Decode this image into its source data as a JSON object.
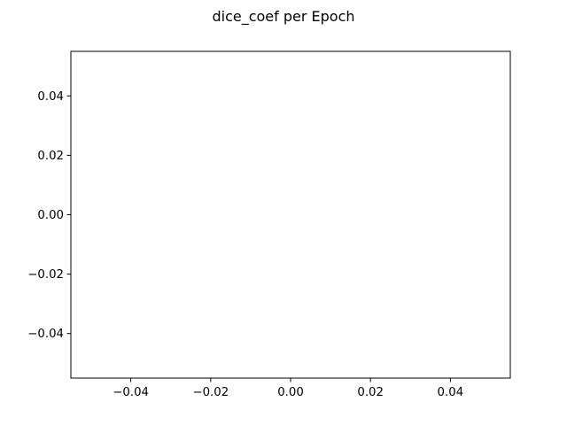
{
  "chart_data": {
    "type": "line",
    "title": "dice_coef per Epoch",
    "xlabel": "",
    "ylabel": "",
    "xlim": [
      -0.055,
      0.055
    ],
    "ylim": [
      -0.055,
      0.055
    ],
    "x_ticks": [
      -0.04,
      -0.02,
      0.0,
      0.02,
      0.04
    ],
    "y_ticks": [
      -0.04,
      -0.02,
      0.0,
      0.02,
      0.04
    ],
    "x_tick_labels": [
      "−0.04",
      "−0.02",
      "0.00",
      "0.02",
      "0.04"
    ],
    "y_tick_labels": [
      "−0.04",
      "−0.02",
      "0.00",
      "0.02",
      "0.04"
    ],
    "series": [],
    "grid": false,
    "legend": "none",
    "colors": {
      "axes": "#000000",
      "background": "#ffffff"
    }
  }
}
